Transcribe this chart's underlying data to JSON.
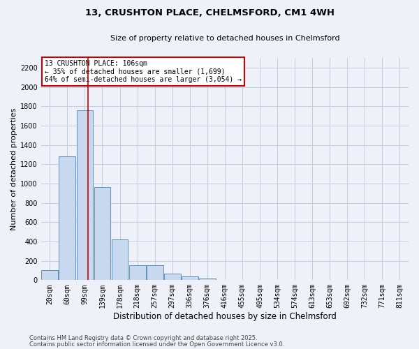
{
  "title1": "13, CRUSHTON PLACE, CHELMSFORD, CM1 4WH",
  "title2": "Size of property relative to detached houses in Chelmsford",
  "xlabel": "Distribution of detached houses by size in Chelmsford",
  "ylabel": "Number of detached properties",
  "categories": [
    "20sqm",
    "60sqm",
    "99sqm",
    "139sqm",
    "178sqm",
    "218sqm",
    "257sqm",
    "297sqm",
    "336sqm",
    "376sqm",
    "416sqm",
    "455sqm",
    "495sqm",
    "534sqm",
    "574sqm",
    "613sqm",
    "653sqm",
    "692sqm",
    "732sqm",
    "771sqm",
    "811sqm"
  ],
  "values": [
    105,
    1280,
    1760,
    960,
    420,
    155,
    155,
    70,
    35,
    20,
    0,
    0,
    0,
    0,
    0,
    0,
    0,
    0,
    0,
    0,
    0
  ],
  "bar_color": "#c8d8ee",
  "bar_edge_color": "#6090c0",
  "vline_color": "#cc0000",
  "vline_x": 2.18,
  "annotation_line1": "13 CRUSHTON PLACE: 106sqm",
  "annotation_line2": "← 35% of detached houses are smaller (1,699)",
  "annotation_line3": "64% of semi-detached houses are larger (3,054) →",
  "annotation_box_color": "#cc0000",
  "ylim": [
    0,
    2300
  ],
  "yticks": [
    0,
    200,
    400,
    600,
    800,
    1000,
    1200,
    1400,
    1600,
    1800,
    2000,
    2200
  ],
  "footer1": "Contains HM Land Registry data © Crown copyright and database right 2025.",
  "footer2": "Contains public sector information licensed under the Open Government Licence v3.0.",
  "bg_color": "#eef2f8",
  "grid_color": "#c0cce0",
  "title1_fontsize": 9.5,
  "title2_fontsize": 8,
  "ylabel_fontsize": 8,
  "xlabel_fontsize": 8.5,
  "tick_fontsize": 7,
  "footer_fontsize": 6
}
